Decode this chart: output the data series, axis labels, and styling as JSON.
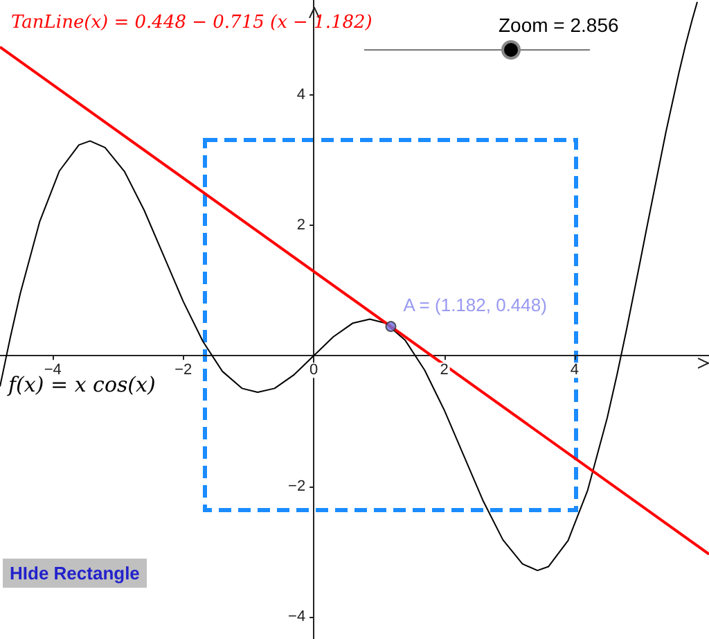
{
  "chart_data": {
    "type": "line",
    "xlim": [
      -4.81,
      6.06
    ],
    "ylim": [
      -4.34,
      5.45
    ],
    "xticks": [
      -4,
      -2,
      0,
      2,
      4
    ],
    "yticks": [
      -4,
      -2,
      2,
      4
    ],
    "grid": false,
    "legend": false,
    "series": [
      {
        "name": "f(x) = x cos(x)",
        "color": "#000000",
        "marker": "none",
        "line_style": "solid",
        "x": [
          -4.81,
          -4.65,
          -4.5,
          -4.2,
          -3.9,
          -3.6,
          -3.43,
          -3.2,
          -2.9,
          -2.6,
          -2.3,
          -2.0,
          -1.7,
          -1.4,
          -1.1,
          -0.86,
          -0.6,
          -0.3,
          0,
          0.3,
          0.6,
          0.86,
          1.1,
          1.4,
          1.7,
          2.0,
          2.3,
          2.6,
          2.9,
          3.2,
          3.43,
          3.6,
          3.9,
          4.2,
          4.5,
          4.65,
          4.8,
          5.0,
          5.1,
          5.4,
          5.6,
          5.7,
          5.8,
          5.88
        ],
        "values": [
          -0.47,
          0.29,
          0.95,
          2.06,
          2.83,
          3.23,
          3.29,
          3.19,
          2.82,
          2.23,
          1.53,
          0.83,
          0.22,
          -0.24,
          -0.5,
          -0.56,
          -0.5,
          -0.29,
          0,
          0.29,
          0.5,
          0.56,
          0.5,
          0.24,
          -0.22,
          -0.83,
          -1.53,
          -2.23,
          -2.82,
          -3.19,
          -3.29,
          -3.23,
          -2.83,
          -2.06,
          -0.95,
          -0.29,
          0.42,
          1.42,
          1.93,
          3.43,
          4.34,
          4.76,
          5.14,
          5.42
        ]
      },
      {
        "name": "TanLine(x) = 0.448 − 0.715 (x − 1.182)",
        "color": "#ff0000",
        "marker": "none",
        "line_style": "solid",
        "x": [
          -4.81,
          6.06
        ],
        "values": [
          4.73,
          -3.04
        ]
      },
      {
        "type": "scatter",
        "color": "#7070e0",
        "marker": "circle",
        "x": [
          1.182
        ],
        "values": [
          0.448
        ]
      }
    ],
    "annotations": [
      {
        "text": "A = (1.182, 0.448)",
        "x": 1.182,
        "y": 0.448
      },
      "Zoom = 2.856",
      "HIde Rectangle"
    ]
  }
}
